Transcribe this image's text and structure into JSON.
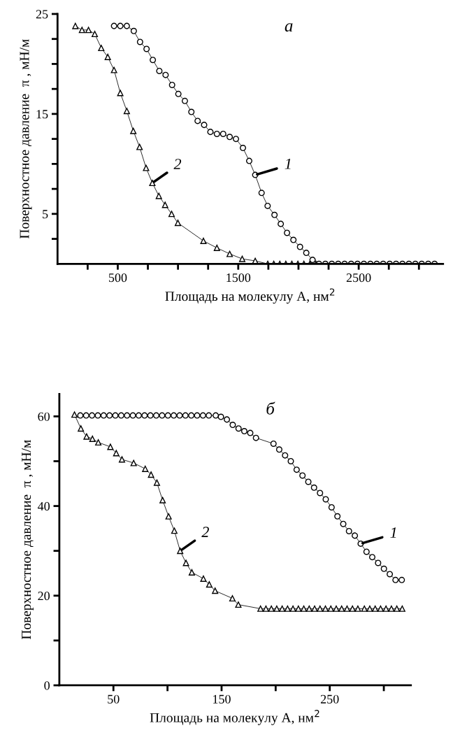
{
  "chart_data": [
    {
      "type": "line",
      "title": "а",
      "xlabel": "Площадь на молекулу А, нм$^{2}$",
      "ylabel": "Поверхностное давление  π , мН/м",
      "xlim": [
        0,
        3200
      ],
      "xticks": [
        {
          "value": 250,
          "label": null
        },
        500,
        {
          "value": 750,
          "label": null
        },
        {
          "value": 1000,
          "label": null
        },
        {
          "value": 1250,
          "label": null
        },
        1500,
        {
          "value": 1750,
          "label": null
        },
        {
          "value": 2000,
          "label": null
        },
        {
          "value": 2250,
          "label": null
        },
        2500,
        {
          "value": 2750,
          "label": null
        },
        {
          "value": 3000,
          "label": null
        }
      ],
      "ylim": [
        0,
        25
      ],
      "yticks": [
        {
          "value": 2.5,
          "label": null
        },
        5,
        {
          "value": 7.5,
          "label": null
        },
        {
          "value": 10,
          "label": null
        },
        {
          "value": 12.5,
          "label": null
        },
        15,
        {
          "value": 17.5,
          "label": null
        },
        {
          "value": 20,
          "label": null
        },
        {
          "value": 22.5,
          "label": null
        },
        25
      ],
      "grid": false,
      "series": [
        {
          "color": "#000000",
          "marker": "circle",
          "x": [
            469,
            521,
            575,
            633,
            685,
            739,
            791,
            845,
            897,
            951,
            1003,
            1057,
            1111,
            1163,
            1217,
            1269,
            1323,
            1375,
            1429,
            1481,
            1539,
            1591,
            1641,
            1694,
            1744,
            1801,
            1853,
            1905,
            1958,
            2013,
            2065,
            2117,
            2170,
            2223,
            2277,
            2330,
            2383,
            2437,
            2490,
            2543,
            2597,
            2650,
            2703,
            2757,
            2810,
            2863,
            2917,
            2970,
            3023,
            3077,
            3130
          ],
          "values": [
            23.8,
            23.8,
            23.8,
            23.3,
            22.2,
            21.5,
            20.4,
            19.3,
            18.9,
            17.9,
            17.0,
            16.3,
            15.2,
            14.3,
            13.9,
            13.2,
            13.0,
            13.0,
            12.7,
            12.5,
            11.6,
            10.3,
            8.9,
            7.1,
            5.8,
            4.9,
            4.0,
            3.1,
            2.4,
            1.7,
            1.1,
            0.4,
            0,
            0,
            0,
            0,
            0,
            0,
            0,
            0,
            0,
            0,
            0,
            0,
            0,
            0,
            0,
            0,
            0,
            0,
            0
          ]
        },
        {
          "color": "#000000",
          "marker": "triangle",
          "x": [
            148,
            203,
            257,
            309,
            363,
            417,
            469,
            521,
            575,
            629,
            681,
            735,
            787,
            841,
            893,
            947,
            999,
            1211,
            1323,
            1429,
            1533,
            1641,
            1745,
            1795,
            1845,
            1895,
            1945,
            1995,
            2045,
            2095,
            2145
          ],
          "values": [
            23.8,
            23.4,
            23.4,
            23.0,
            21.6,
            20.7,
            19.4,
            17.1,
            15.3,
            13.3,
            11.7,
            9.6,
            8.1,
            6.8,
            5.9,
            5.0,
            4.1,
            2.3,
            1.6,
            1.0,
            0.5,
            0.3,
            0,
            0,
            0,
            0,
            0,
            0,
            0,
            0,
            0
          ]
        }
      ],
      "annotations": [
        {
          "text": "1",
          "x": 1641,
          "y": 8.9
        },
        {
          "text": "2",
          "x": 787,
          "y": 8.1
        }
      ]
    },
    {
      "type": "line",
      "title": "б",
      "xlabel": "Площадь на молекулу А, нм$^{2}$",
      "ylabel": "Поверхностное давление  π , мН/м",
      "xlim": [
        0,
        325
      ],
      "xticks": [
        50,
        {
          "value": 100,
          "label": null
        },
        150,
        {
          "value": 200,
          "label": null
        },
        250,
        {
          "value": 300,
          "label": null
        }
      ],
      "ylim": [
        0,
        65
      ],
      "yticks": [
        0,
        {
          "value": 10,
          "label": null
        },
        20,
        {
          "value": 30,
          "label": null
        },
        40,
        {
          "value": 50,
          "label": null
        },
        60
      ],
      "grid": false,
      "series": [
        {
          "color": "#000000",
          "marker": "circle",
          "x": [
            19.4,
            24.8,
            30.2,
            35.6,
            41,
            46.4,
            51.8,
            57.2,
            62.6,
            68,
            73.4,
            78.8,
            84.2,
            89.6,
            95,
            100.4,
            105.8,
            111.2,
            116.6,
            122,
            127.4,
            132.8,
            138.2,
            144.6,
            149.4,
            154.9,
            160.3,
            165.7,
            171,
            176.5,
            181.8,
            198,
            203.3,
            208.7,
            214,
            219.4,
            224.8,
            230.2,
            235.5,
            241,
            246.3,
            251.7,
            257.1,
            262.5,
            267.8,
            273.2,
            278.6,
            284,
            289.3,
            294.7,
            300.1,
            305.5,
            310.8,
            316.6
          ],
          "values": [
            60.2,
            60.2,
            60.2,
            60.2,
            60.2,
            60.2,
            60.2,
            60.2,
            60.2,
            60.2,
            60.2,
            60.2,
            60.2,
            60.2,
            60.2,
            60.2,
            60.2,
            60.2,
            60.2,
            60.2,
            60.2,
            60.2,
            60.2,
            60.2,
            59.9,
            59.3,
            58.1,
            57.3,
            56.7,
            56.3,
            55.2,
            53.9,
            52.6,
            51.3,
            50.0,
            48.1,
            46.8,
            45.4,
            44.1,
            42.9,
            41.5,
            39.7,
            37.7,
            36.0,
            34.4,
            33.4,
            31.6,
            29.8,
            28.6,
            27.3,
            26.0,
            24.8,
            23.5,
            23.5
          ]
        },
        {
          "color": "#000000",
          "marker": "triangle",
          "x": [
            14,
            19.9,
            25.2,
            30.6,
            36,
            47.2,
            52.6,
            57.9,
            68.7,
            79.4,
            84.8,
            90.2,
            95.5,
            101,
            106.3,
            111.7,
            117.1,
            122.5,
            133.2,
            138.6,
            144,
            160,
            165.5,
            186,
            191,
            196,
            201,
            206,
            211,
            216,
            221,
            226,
            231,
            236,
            241,
            246,
            251,
            256,
            261,
            266,
            271,
            276,
            282,
            287,
            292,
            297,
            302,
            307,
            312,
            317
          ],
          "values": [
            60.4,
            57.3,
            55.5,
            55.0,
            54.2,
            53.2,
            51.8,
            50.4,
            49.6,
            48.3,
            47.0,
            45.2,
            41.3,
            37.7,
            34.5,
            30.0,
            27.3,
            25.2,
            23.8,
            22.5,
            21.1,
            19.4,
            18.0,
            17.1,
            17.1,
            17.1,
            17.1,
            17.1,
            17.1,
            17.1,
            17.1,
            17.1,
            17.1,
            17.1,
            17.1,
            17.1,
            17.1,
            17.1,
            17.1,
            17.1,
            17.1,
            17.1,
            17.1,
            17.1,
            17.1,
            17.1,
            17.1,
            17.1,
            17.1,
            17.1
          ]
        }
      ],
      "annotations": [
        {
          "text": "1",
          "x": 278.6,
          "y": 31.6
        },
        {
          "text": "2",
          "x": 111.7,
          "y": 30.0
        }
      ]
    }
  ]
}
